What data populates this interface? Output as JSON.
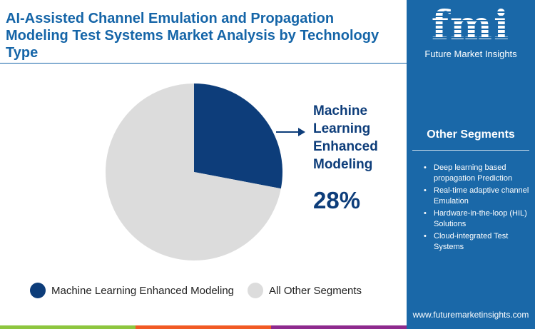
{
  "title": "AI-Assisted Channel Emulation and Propagation Modeling Test Systems Market Analysis by Technology Type",
  "chart_data": {
    "type": "pie",
    "slices": [
      {
        "label": "Machine Learning Enhanced Modeling",
        "value": 28,
        "color": "#0d3d7a"
      },
      {
        "label": "All Other Segments",
        "value": 72,
        "color": "#dcdcdc"
      }
    ]
  },
  "callout": {
    "label": "Machine Learning Enhanced Modeling",
    "value": "28%"
  },
  "legend": [
    "Machine Learning Enhanced Modeling",
    "All Other Segments"
  ],
  "sidebar": {
    "logo_text": "fmi",
    "logo_sub": "Future Market Insights",
    "heading": "Other Segments",
    "items": [
      "Deep learning based propagation Prediction",
      "Real-time adaptive channel Emulation",
      "Hardware-in-the-loop (HIL) Solutions",
      "Cloud-integrated Test Systems"
    ],
    "url": "www.futuremarketinsights.com"
  },
  "colors": {
    "accent": "#1565a8",
    "footer": [
      "#8dc63f",
      "#f15a24",
      "#8e2a8e"
    ]
  }
}
